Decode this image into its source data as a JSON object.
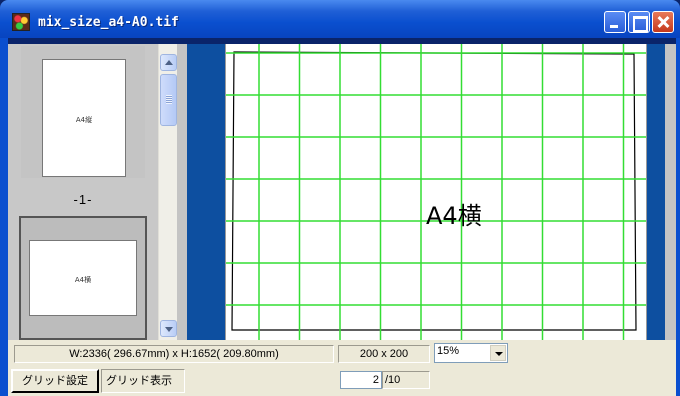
{
  "window": {
    "title": "mix_size_a4-A0.tif",
    "controls": {
      "minimize": "minimize",
      "maximize": "maximize",
      "close": "close"
    }
  },
  "thumbnails": {
    "items": [
      {
        "label": "A4縦",
        "orientation": "portrait",
        "page_number": "-1-"
      },
      {
        "label": "A4横",
        "orientation": "landscape"
      }
    ]
  },
  "viewer": {
    "page_text": "A4横",
    "grid_color": "#33dd33",
    "background_color": "#0d4fa0"
  },
  "status": {
    "dimensions": "W:2336( 296.67mm) x H:1652( 209.80mm)",
    "grid_size": "200 x 200",
    "zoom": "15%"
  },
  "toolbar": {
    "grid_settings_label": "グリッド設定",
    "grid_display_label": "グリッド表示",
    "current_page": "2",
    "total_pages": "/10"
  }
}
